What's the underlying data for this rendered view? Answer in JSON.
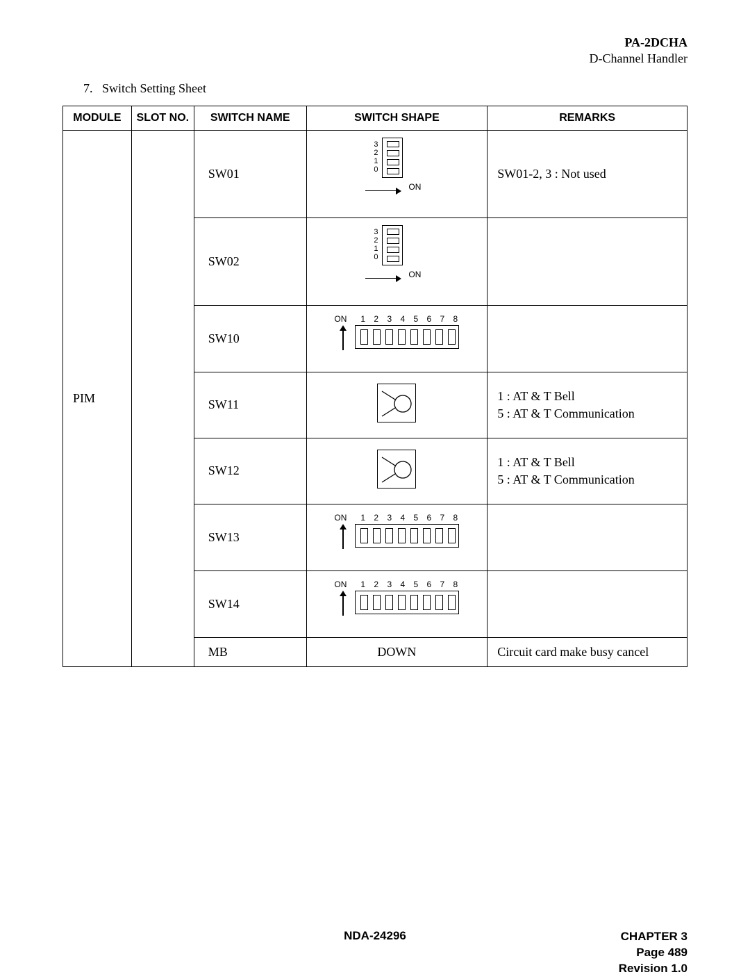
{
  "header": {
    "code": "PA-2DCHA",
    "subtitle": "D-Channel Handler"
  },
  "section": {
    "number": "7.",
    "title": "Switch Setting Sheet"
  },
  "table": {
    "columns": {
      "module": "MODULE",
      "slot": "SLOT NO.",
      "name": "SWITCH NAME",
      "shape": "SWITCH SHAPE",
      "remarks": "REMARKS"
    },
    "module": "PIM",
    "rows": [
      {
        "name": "SW01",
        "shape": "dip4",
        "remarks": "SW01-2, 3 : Not used",
        "height": "tall"
      },
      {
        "name": "SW02",
        "shape": "dip4",
        "remarks": "",
        "height": "tall"
      },
      {
        "name": "SW10",
        "shape": "dip8",
        "remarks": "",
        "height": "med"
      },
      {
        "name": "SW11",
        "shape": "rotary",
        "remarks": "1 : AT & T Bell\n5 : AT & T Communication",
        "height": "med"
      },
      {
        "name": "SW12",
        "shape": "rotary",
        "remarks": "1 : AT & T Bell\n5 : AT & T Communication",
        "height": "med"
      },
      {
        "name": "SW13",
        "shape": "dip8",
        "remarks": "",
        "height": "med"
      },
      {
        "name": "SW14",
        "shape": "dip8",
        "remarks": "",
        "height": "med"
      },
      {
        "name": "MB",
        "shape": "text",
        "shape_text": "DOWN",
        "remarks": "Circuit card make busy cancel",
        "height": "short"
      }
    ]
  },
  "dip4": {
    "labels": [
      "3",
      "2",
      "1",
      "0"
    ],
    "on_label": "ON"
  },
  "dip8": {
    "on_label": "ON",
    "numbers": "1 2 3 4 5 6 7 8"
  },
  "footer": {
    "doc": "NDA-24296",
    "chapter": "CHAPTER 3",
    "page": "Page 489",
    "revision": "Revision 1.0"
  }
}
